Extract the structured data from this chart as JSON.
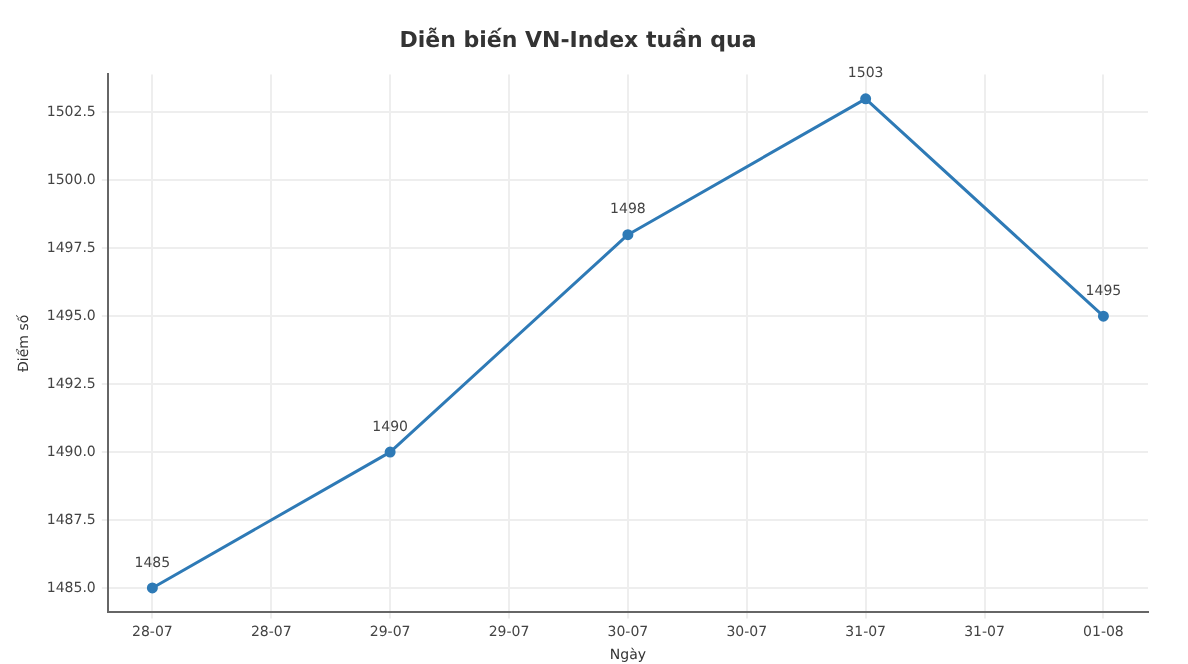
{
  "chart_data": {
    "type": "line",
    "title": "Diễn biến VN-Index tuần qua",
    "xlabel": "Ngày",
    "ylabel": "Điểm số",
    "x": [
      "--07-28",
      "--07-29",
      "--07-30",
      "--07-31",
      "--08-01"
    ],
    "series": [
      {
        "color": "#2e7ab6",
        "values": [
          1485,
          1490,
          1498,
          1503,
          1495
        ]
      }
    ],
    "xlim": [
      "--07-27T19:30",
      "--08-01T04:30"
    ],
    "xticks": [
      {
        "value": "--07-28",
        "label": "28-07"
      },
      {
        "value": "--07-28T12:00",
        "label": "28-07"
      },
      {
        "value": "--07-29",
        "label": "29-07"
      },
      {
        "value": "--07-29T12:00",
        "label": "29-07"
      },
      {
        "value": "--07-30",
        "label": "30-07"
      },
      {
        "value": "--07-30T12:00",
        "label": "30-07"
      },
      {
        "value": "--07-31",
        "label": "31-07"
      },
      {
        "value": "--07-31T12:00",
        "label": "31-07"
      },
      {
        "value": "--08-01",
        "label": "01-08"
      }
    ],
    "ylim": [
      1484.1,
      1503.9
    ],
    "yticks": [
      {
        "value": 1485,
        "label": "1485.0"
      },
      {
        "value": 1487.5,
        "label": "1487.5"
      },
      {
        "value": 1490,
        "label": "1490.0"
      },
      {
        "value": 1492.5,
        "label": "1492.5"
      },
      {
        "value": 1495,
        "label": "1495.0"
      },
      {
        "value": 1497.5,
        "label": "1497.5"
      },
      {
        "value": 1500,
        "label": "1500.0"
      },
      {
        "value": 1502.5,
        "label": "1502.5"
      }
    ],
    "grid": true,
    "marker": "circle",
    "line_style": "solid",
    "data_labels": true,
    "legend": false
  }
}
